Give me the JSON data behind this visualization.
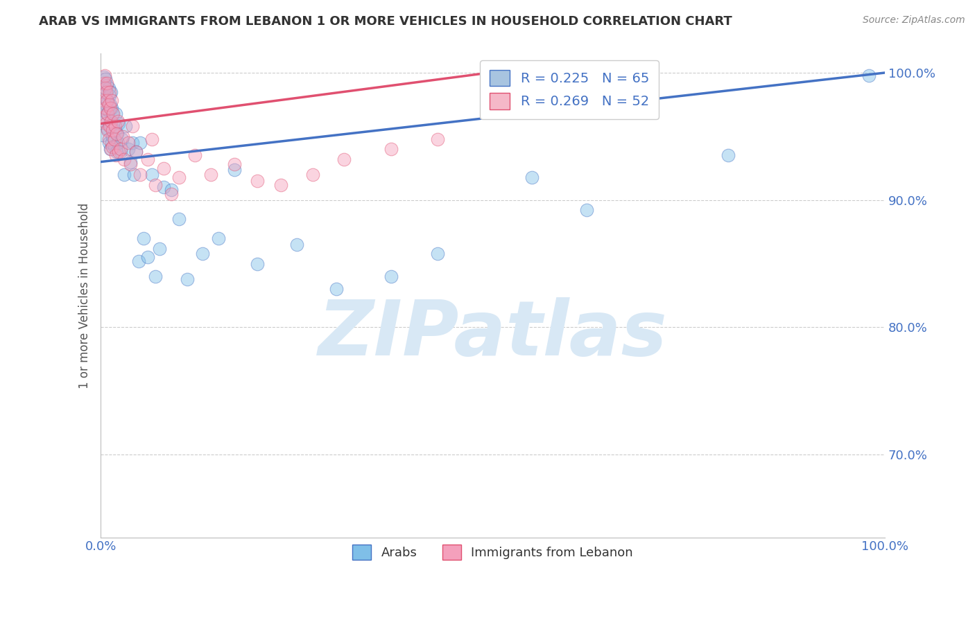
{
  "title": "ARAB VS IMMIGRANTS FROM LEBANON 1 OR MORE VEHICLES IN HOUSEHOLD CORRELATION CHART",
  "source": "Source: ZipAtlas.com",
  "ylabel": "1 or more Vehicles in Household",
  "ytick_labels": [
    "70.0%",
    "80.0%",
    "90.0%",
    "100.0%"
  ],
  "ytick_values": [
    0.7,
    0.8,
    0.9,
    1.0
  ],
  "xlim": [
    0.0,
    1.0
  ],
  "ylim": [
    0.635,
    1.015
  ],
  "legend1_label": "R = 0.225   N = 65",
  "legend2_label": "R = 0.269   N = 52",
  "legend1_color": "#a8c4e0",
  "legend2_color": "#f5b8c8",
  "blue_color": "#7fbfe8",
  "pink_color": "#f4a0bc",
  "trend_blue": "#4472c4",
  "trend_pink": "#e05070",
  "watermark": "ZIPatlas",
  "watermark_color": "#d8e8f5",
  "arab_x": [
    0.002,
    0.003,
    0.004,
    0.004,
    0.005,
    0.005,
    0.006,
    0.007,
    0.008,
    0.008,
    0.009,
    0.009,
    0.01,
    0.01,
    0.01,
    0.011,
    0.011,
    0.012,
    0.012,
    0.013,
    0.013,
    0.014,
    0.014,
    0.015,
    0.015,
    0.016,
    0.017,
    0.018,
    0.019,
    0.02,
    0.021,
    0.022,
    0.023,
    0.025,
    0.027,
    0.03,
    0.032,
    0.035,
    0.038,
    0.04,
    0.042,
    0.045,
    0.048,
    0.05,
    0.055,
    0.06,
    0.065,
    0.07,
    0.075,
    0.08,
    0.09,
    0.1,
    0.11,
    0.13,
    0.15,
    0.17,
    0.2,
    0.25,
    0.3,
    0.37,
    0.43,
    0.55,
    0.62,
    0.8,
    0.98
  ],
  "arab_y": [
    0.951,
    0.972,
    0.985,
    0.997,
    0.988,
    0.962,
    0.995,
    0.975,
    0.99,
    0.968,
    0.978,
    0.956,
    0.97,
    0.988,
    0.945,
    0.982,
    0.96,
    0.975,
    0.94,
    0.985,
    0.958,
    0.972,
    0.945,
    0.968,
    0.95,
    0.96,
    0.942,
    0.955,
    0.968,
    0.938,
    0.952,
    0.945,
    0.96,
    0.938,
    0.948,
    0.92,
    0.958,
    0.94,
    0.93,
    0.945,
    0.92,
    0.938,
    0.852,
    0.945,
    0.87,
    0.855,
    0.92,
    0.84,
    0.862,
    0.91,
    0.908,
    0.885,
    0.838,
    0.858,
    0.87,
    0.924,
    0.85,
    0.865,
    0.83,
    0.84,
    0.858,
    0.918,
    0.892,
    0.935,
    0.998
  ],
  "leb_x": [
    0.002,
    0.003,
    0.004,
    0.005,
    0.006,
    0.006,
    0.007,
    0.007,
    0.008,
    0.008,
    0.009,
    0.009,
    0.01,
    0.01,
    0.011,
    0.011,
    0.012,
    0.013,
    0.013,
    0.014,
    0.015,
    0.015,
    0.016,
    0.017,
    0.018,
    0.019,
    0.02,
    0.022,
    0.023,
    0.025,
    0.028,
    0.03,
    0.035,
    0.038,
    0.04,
    0.045,
    0.05,
    0.06,
    0.065,
    0.07,
    0.08,
    0.09,
    0.1,
    0.12,
    0.14,
    0.17,
    0.2,
    0.23,
    0.27,
    0.31,
    0.37,
    0.43
  ],
  "leb_y": [
    0.965,
    0.978,
    0.992,
    0.998,
    0.988,
    0.972,
    0.985,
    0.96,
    0.978,
    0.992,
    0.968,
    0.955,
    0.975,
    0.948,
    0.985,
    0.958,
    0.972,
    0.962,
    0.94,
    0.978,
    0.955,
    0.942,
    0.968,
    0.948,
    0.958,
    0.935,
    0.952,
    0.962,
    0.938,
    0.94,
    0.95,
    0.932,
    0.945,
    0.928,
    0.958,
    0.938,
    0.92,
    0.932,
    0.948,
    0.912,
    0.925,
    0.905,
    0.918,
    0.935,
    0.92,
    0.928,
    0.915,
    0.912,
    0.92,
    0.932,
    0.94,
    0.948
  ]
}
